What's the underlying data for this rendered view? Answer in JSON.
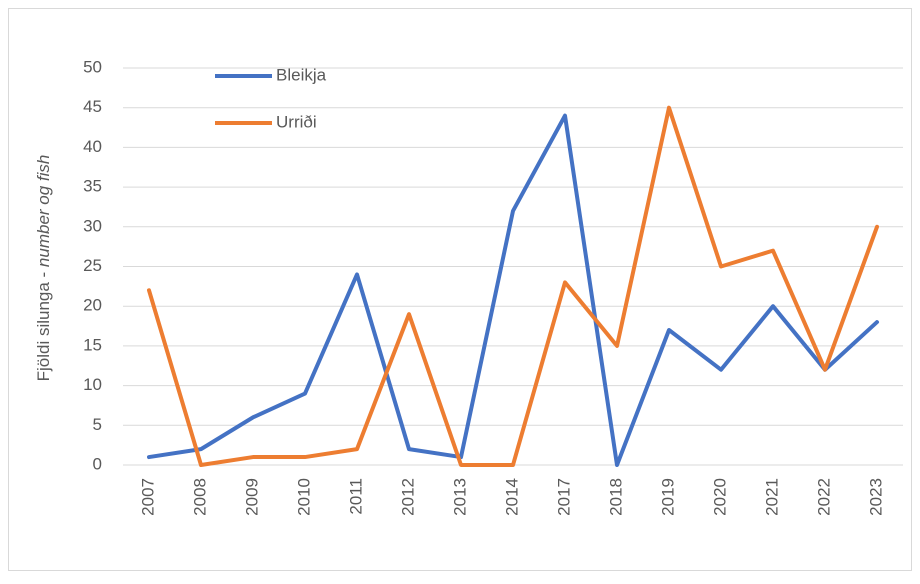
{
  "chart_data": {
    "type": "line",
    "y_label_plain": "Fjöldi silunga - ",
    "y_label_italic": "number og fish",
    "categories": [
      "2007",
      "2008",
      "2009",
      "2010",
      "2011",
      "2012",
      "2013",
      "2014",
      "2017",
      "2018",
      "2019",
      "2020",
      "2021",
      "2022",
      "2023"
    ],
    "series": [
      {
        "name": "Bleikja",
        "color": "#4472c4",
        "values": [
          1,
          2,
          6,
          9,
          24,
          2,
          1,
          32,
          44,
          0,
          17,
          12,
          20,
          12,
          18
        ]
      },
      {
        "name": "Urriði",
        "color": "#ed7d31",
        "values": [
          22,
          0,
          1,
          1,
          2,
          19,
          0,
          0,
          23,
          15,
          45,
          25,
          27,
          12,
          30
        ]
      }
    ],
    "ylim": [
      0,
      50
    ],
    "yticks": [
      0,
      5,
      10,
      15,
      20,
      25,
      30,
      35,
      40,
      45,
      50
    ],
    "grid": true,
    "legend": "upper left"
  }
}
